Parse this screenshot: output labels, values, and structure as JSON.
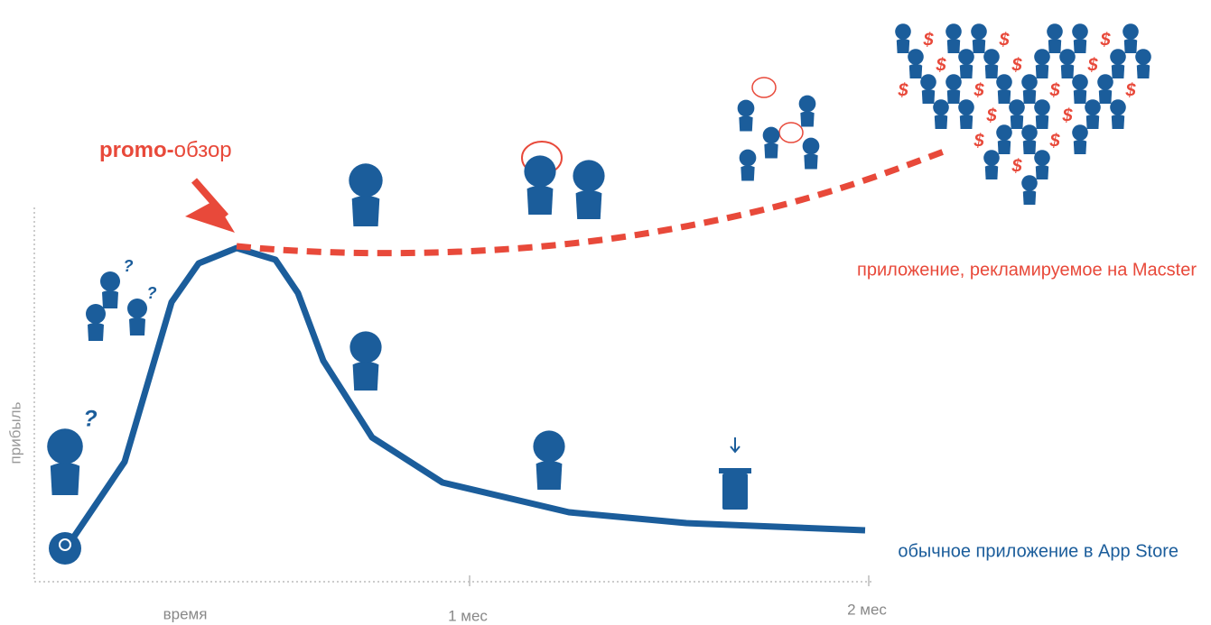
{
  "title": {
    "prefix": "promo-",
    "rest": "обзор"
  },
  "axes": {
    "y_label": "прибыль",
    "x_label": "время",
    "ticks": [
      "1 мес",
      "2 мес"
    ]
  },
  "labels": {
    "promoted": "приложение, рекламируемое на Macster",
    "regular": "обычное приложение в App Store"
  },
  "symbols": {
    "money": "$",
    "question": "?"
  }
}
